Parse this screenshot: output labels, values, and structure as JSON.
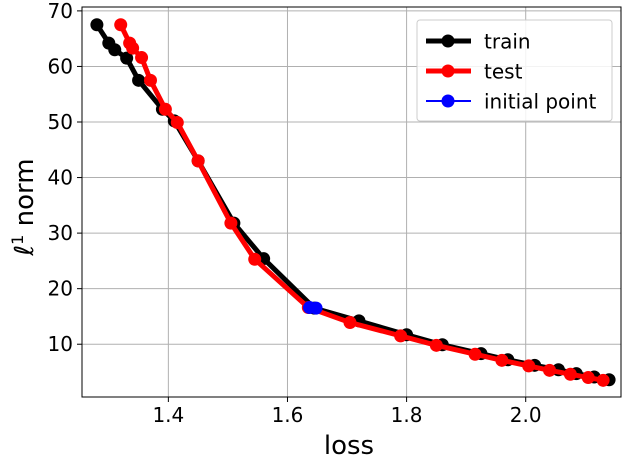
{
  "chart_data": {
    "type": "line",
    "title": "",
    "xlabel": "loss",
    "ylabel": "ℓ¹ norm",
    "ylabel_main": "ℓ",
    "ylabel_sup": "1",
    "ylabel_rest": " norm",
    "xlim": [
      1.255,
      2.16
    ],
    "ylim": [
      0.5,
      70.7
    ],
    "xticks": [
      1.4,
      1.6,
      1.8,
      2.0
    ],
    "yticks": [
      10,
      20,
      30,
      40,
      50,
      60,
      70
    ],
    "xtick_labels": [
      "1.4",
      "1.6",
      "1.8",
      "2.0"
    ],
    "ytick_labels": [
      "10",
      "20",
      "30",
      "40",
      "50",
      "60",
      "70"
    ],
    "grid": true,
    "legend_position": "top-right",
    "series": [
      {
        "name": "train",
        "color": "#000000",
        "x": [
          1.28,
          1.3,
          1.31,
          1.33,
          1.35,
          1.39,
          1.41,
          1.45,
          1.51,
          1.56,
          1.645,
          1.72,
          1.8,
          1.86,
          1.925,
          1.97,
          2.015,
          2.055,
          2.085,
          2.115,
          2.14
        ],
        "y": [
          67.5,
          64.2,
          63.0,
          61.5,
          57.5,
          52.3,
          50.2,
          43.0,
          31.8,
          25.4,
          16.5,
          14.2,
          11.7,
          9.9,
          8.3,
          7.2,
          6.2,
          5.4,
          4.7,
          4.1,
          3.6
        ]
      },
      {
        "name": "test",
        "color": "#ff0000",
        "x": [
          1.32,
          1.335,
          1.34,
          1.355,
          1.37,
          1.395,
          1.415,
          1.45,
          1.505,
          1.545,
          1.635,
          1.705,
          1.79,
          1.85,
          1.915,
          1.96,
          2.005,
          2.04,
          2.075,
          2.105,
          2.13
        ],
        "y": [
          67.5,
          64.2,
          63.3,
          61.6,
          57.5,
          52.3,
          49.9,
          43.0,
          31.8,
          25.3,
          16.6,
          13.9,
          11.5,
          9.8,
          8.2,
          7.1,
          6.1,
          5.3,
          4.6,
          4.0,
          3.5
        ]
      },
      {
        "name": "initial point",
        "color": "#0000ff",
        "x": [
          1.637,
          1.648
        ],
        "y": [
          16.6,
          16.5
        ]
      }
    ]
  }
}
